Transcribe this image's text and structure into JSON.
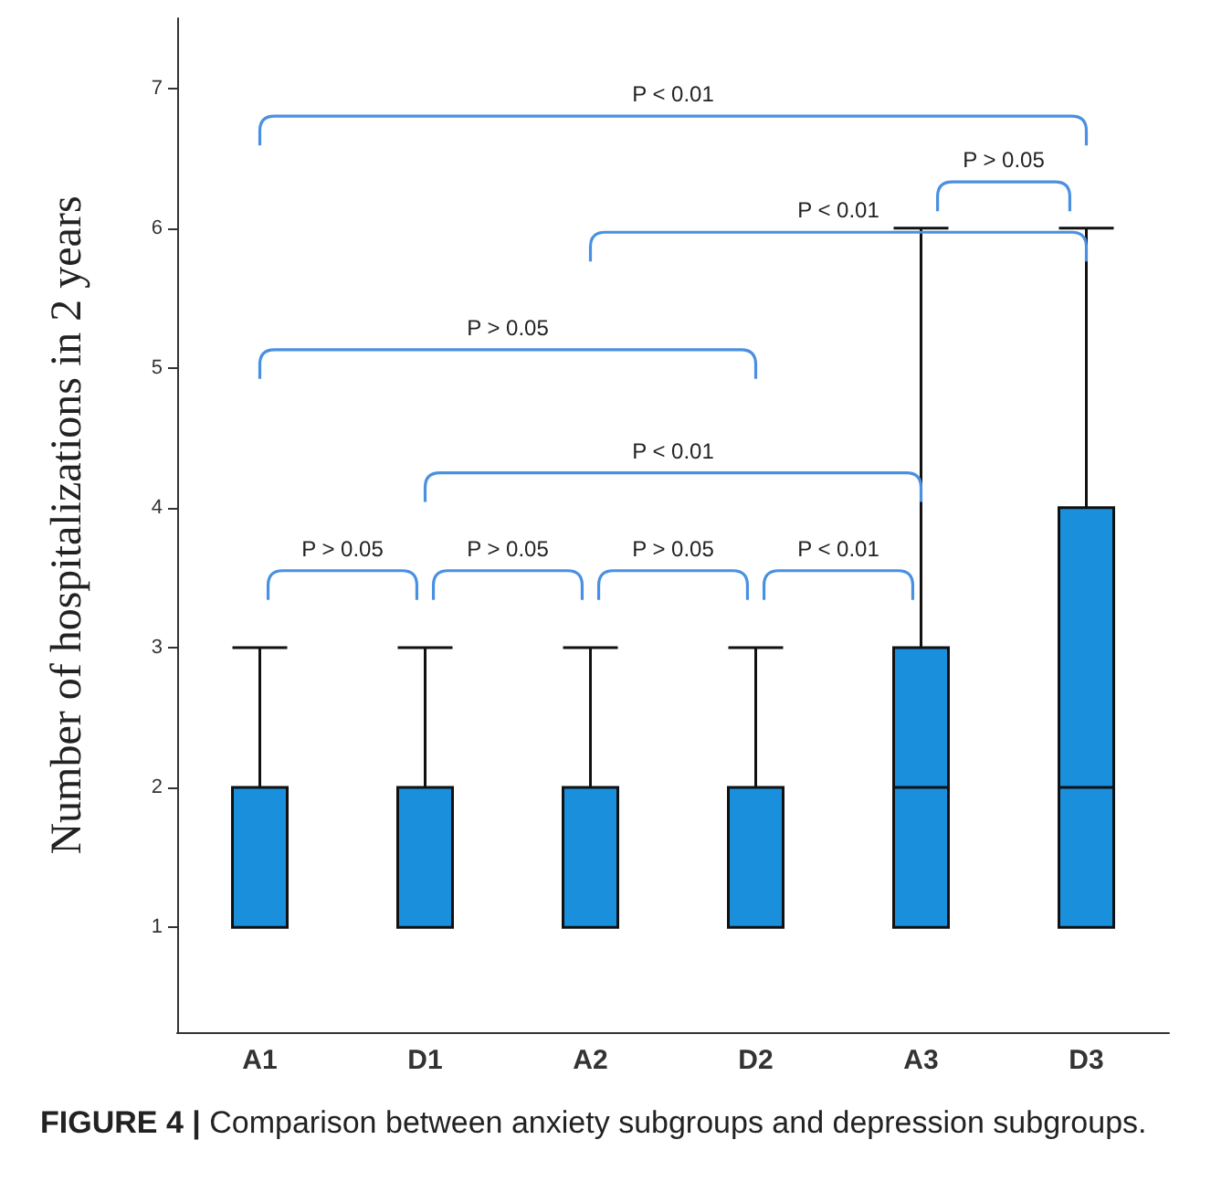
{
  "chart_data": {
    "type": "box",
    "ylabel": "Number of hospitalizations in 2 years",
    "categories": [
      "A1",
      "D1",
      "A2",
      "D2",
      "A3",
      "D3"
    ],
    "series": [
      {
        "color": "#1a8fdc",
        "boxes": [
          {
            "low": 1,
            "q1": 1,
            "median": 1,
            "q3": 2,
            "high": 3
          },
          {
            "low": 1,
            "q1": 1,
            "median": 1,
            "q3": 2,
            "high": 3
          },
          {
            "low": 1,
            "q1": 1,
            "median": 1,
            "q3": 2,
            "high": 3
          },
          {
            "low": 1,
            "q1": 1,
            "median": 1,
            "q3": 2,
            "high": 3
          },
          {
            "low": 1,
            "q1": 1,
            "median": 2,
            "q3": 3,
            "high": 6
          },
          {
            "low": 1,
            "q1": 1,
            "median": 2,
            "q3": 4,
            "high": 6
          }
        ]
      }
    ],
    "ylim": [
      0.25,
      7.5
    ],
    "yticks": [
      1,
      2,
      3,
      4,
      5,
      6,
      7
    ],
    "grid": false,
    "annotations": [
      "P < 0.01",
      "P > 0.05",
      "P < 0.01",
      "P > 0.05",
      "P < 0.01",
      "P > 0.05",
      "P > 0.05",
      "P > 0.05",
      "P < 0.01",
      "FIGURE 4 | Comparison between anxiety subgroups and depression subgroups."
    ]
  }
}
